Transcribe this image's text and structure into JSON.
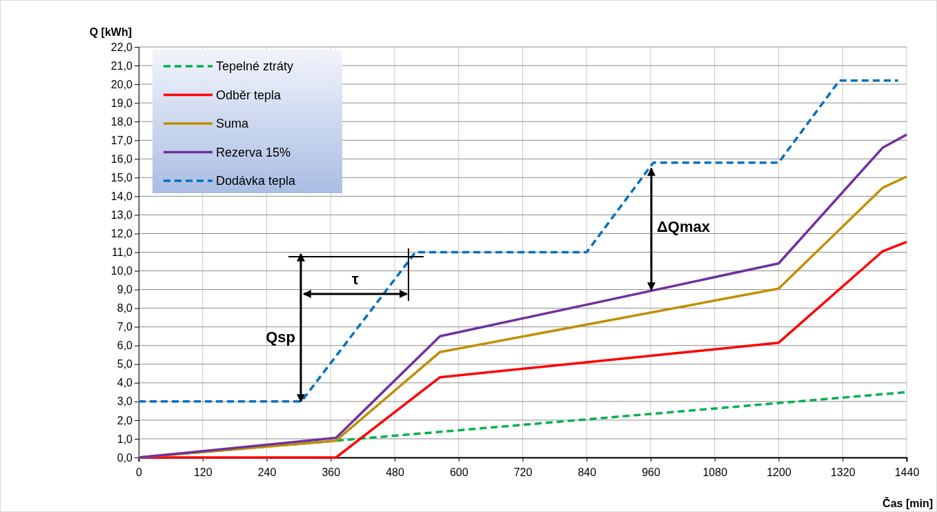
{
  "chart_data": {
    "type": "line",
    "xlabel": "Čas [min]",
    "ylabel": "Q [kWh]",
    "xlim": [
      0,
      1440
    ],
    "xticks": [
      0,
      120,
      240,
      360,
      480,
      600,
      720,
      840,
      960,
      1080,
      1200,
      1320,
      1440
    ],
    "ylim": [
      0,
      22
    ],
    "yticks": [
      {
        "value": 0,
        "label": "0,0"
      },
      {
        "value": 1,
        "label": "1,0"
      },
      {
        "value": 2,
        "label": "2,0"
      },
      {
        "value": 3,
        "label": "3,0"
      },
      {
        "value": 4,
        "label": "4,0"
      },
      {
        "value": 5,
        "label": "5,0"
      },
      {
        "value": 6,
        "label": "6,0"
      },
      {
        "value": 7,
        "label": "7,0"
      },
      {
        "value": 8,
        "label": "8,0"
      },
      {
        "value": 9,
        "label": "9,0"
      },
      {
        "value": 10,
        "label": "10,0"
      },
      {
        "value": 11,
        "label": "11,0"
      },
      {
        "value": 12,
        "label": "12,0"
      },
      {
        "value": 13,
        "label": "13,0"
      },
      {
        "value": 14,
        "label": "14,0"
      },
      {
        "value": 15,
        "label": "15,0"
      },
      {
        "value": 16,
        "label": "16,0"
      },
      {
        "value": 17,
        "label": "17,0"
      },
      {
        "value": 18,
        "label": "18,0"
      },
      {
        "value": 19,
        "label": "19,0"
      },
      {
        "value": 20,
        "label": "20,0"
      },
      {
        "value": 21,
        "label": "21,0"
      },
      {
        "value": 22,
        "label": "22,0"
      }
    ],
    "grid": true,
    "legend": "top left",
    "marker": "none",
    "series": [
      {
        "name": "Tepelné ztráty",
        "color": "#00b050",
        "line_style": "dashed",
        "x": [
          0,
          370,
          1440
        ],
        "values": [
          0,
          0.9,
          3.5
        ]
      },
      {
        "name": "Odběr tepla",
        "color": "#ff0000",
        "line_style": "solid",
        "x": [
          0,
          370,
          565,
          1200,
          1395,
          1440
        ],
        "values": [
          0,
          0,
          4.3,
          6.15,
          11.05,
          11.55
        ]
      },
      {
        "name": "Suma",
        "color": "#bf8f00",
        "line_style": "solid",
        "x": [
          0,
          370,
          565,
          1200,
          1395,
          1440
        ],
        "values": [
          0,
          0.9,
          5.65,
          9.05,
          14.45,
          15.05
        ]
      },
      {
        "name": "Rezerva 15%",
        "color": "#7030a0",
        "line_style": "solid",
        "x": [
          0,
          370,
          565,
          1200,
          1395,
          1440
        ],
        "values": [
          0,
          1.05,
          6.5,
          10.4,
          16.6,
          17.3
        ]
      },
      {
        "name": "Dodávka tepla",
        "color": "#0070c0",
        "line_style": "dashed",
        "x": [
          0,
          305,
          519,
          840,
          965,
          1200,
          1314,
          1424
        ],
        "values": [
          3,
          3,
          11,
          11,
          15.8,
          15.8,
          20.2,
          20.2
        ]
      }
    ],
    "annotations": [
      "Qsp",
      "τ",
      "ΔQmax"
    ]
  }
}
